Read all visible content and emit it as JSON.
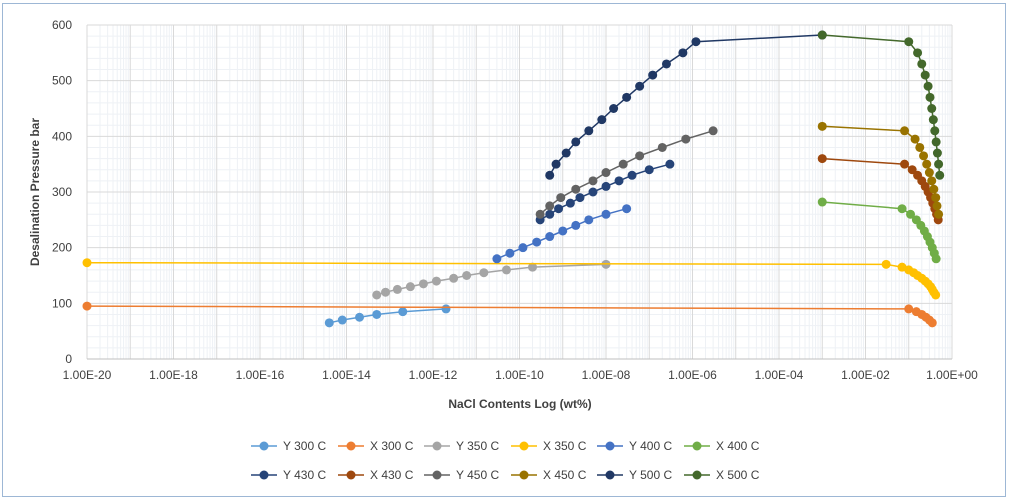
{
  "chart_data": {
    "type": "scatter",
    "title": "",
    "xlabel": "NaCl Contents Log (wt%)",
    "ylabel": "Desalination Pressure bar",
    "x_scale": "log",
    "xlim": [
      1e-20,
      1
    ],
    "ylim": [
      0,
      600
    ],
    "grid": true,
    "legend_position": "bottom",
    "x_tick_labels": [
      "1.00E-20",
      "1.00E-18",
      "1.00E-16",
      "1.00E-14",
      "1.00E-12",
      "1.00E-10",
      "1.00E-08",
      "1.00E-06",
      "1.00E-04",
      "1.00E-02",
      "1.00E+00"
    ],
    "y_tick_labels": [
      "0",
      "100",
      "200",
      "300",
      "400",
      "500",
      "600"
    ],
    "series": [
      {
        "name": "Y 300 C",
        "color": "#5b9bd5",
        "points": [
          [
            4e-15,
            65
          ],
          [
            8e-15,
            70
          ],
          [
            2e-14,
            75
          ],
          [
            5e-14,
            80
          ],
          [
            2e-13,
            85
          ],
          [
            2e-12,
            90
          ]
        ]
      },
      {
        "name": "X 300 C",
        "color": "#ed7d31",
        "points": [
          [
            1e-20,
            95
          ],
          [
            0.1,
            90
          ],
          [
            0.15,
            85
          ],
          [
            0.2,
            80
          ],
          [
            0.25,
            75
          ],
          [
            0.3,
            70
          ],
          [
            0.35,
            65
          ]
        ]
      },
      {
        "name": "Y 350 C",
        "color": "#a5a5a5",
        "points": [
          [
            5e-14,
            115
          ],
          [
            8e-14,
            120
          ],
          [
            1.5e-13,
            125
          ],
          [
            3e-13,
            130
          ],
          [
            6e-13,
            135
          ],
          [
            1.2e-12,
            140
          ],
          [
            3e-12,
            145
          ],
          [
            6e-12,
            150
          ],
          [
            1.5e-11,
            155
          ],
          [
            5e-11,
            160
          ],
          [
            2e-10,
            165
          ],
          [
            1e-08,
            170
          ]
        ]
      },
      {
        "name": "X 350 C",
        "color": "#ffc000",
        "points": [
          [
            1e-20,
            173
          ],
          [
            0.03,
            170
          ],
          [
            0.07,
            165
          ],
          [
            0.1,
            160
          ],
          [
            0.13,
            155
          ],
          [
            0.16,
            150
          ],
          [
            0.2,
            145
          ],
          [
            0.24,
            140
          ],
          [
            0.28,
            135
          ],
          [
            0.32,
            130
          ],
          [
            0.35,
            125
          ],
          [
            0.38,
            120
          ],
          [
            0.42,
            115
          ]
        ]
      },
      {
        "name": "Y 400 C",
        "color": "#4472c4",
        "points": [
          [
            3e-11,
            180
          ],
          [
            6e-11,
            190
          ],
          [
            1.2e-10,
            200
          ],
          [
            2.5e-10,
            210
          ],
          [
            5e-10,
            220
          ],
          [
            1e-09,
            230
          ],
          [
            2e-09,
            240
          ],
          [
            4e-09,
            250
          ],
          [
            1e-08,
            260
          ],
          [
            3e-08,
            270
          ]
        ]
      },
      {
        "name": "X 400 C",
        "color": "#70ad47",
        "points": [
          [
            0.001,
            282
          ],
          [
            0.07,
            270
          ],
          [
            0.11,
            260
          ],
          [
            0.15,
            250
          ],
          [
            0.19,
            240
          ],
          [
            0.23,
            230
          ],
          [
            0.27,
            220
          ],
          [
            0.31,
            210
          ],
          [
            0.35,
            200
          ],
          [
            0.39,
            190
          ],
          [
            0.43,
            180
          ]
        ]
      },
      {
        "name": "Y 430 C",
        "color": "#264478",
        "points": [
          [
            3e-10,
            250
          ],
          [
            5e-10,
            260
          ],
          [
            8e-10,
            270
          ],
          [
            1.5e-09,
            280
          ],
          [
            2.5e-09,
            290
          ],
          [
            5e-09,
            300
          ],
          [
            1e-08,
            310
          ],
          [
            2e-08,
            320
          ],
          [
            4e-08,
            330
          ],
          [
            1e-07,
            340
          ],
          [
            3e-07,
            350
          ]
        ]
      },
      {
        "name": "X 430 C",
        "color": "#9e480e",
        "points": [
          [
            0.001,
            360
          ],
          [
            0.08,
            350
          ],
          [
            0.12,
            340
          ],
          [
            0.16,
            330
          ],
          [
            0.2,
            320
          ],
          [
            0.24,
            310
          ],
          [
            0.28,
            300
          ],
          [
            0.32,
            290
          ],
          [
            0.36,
            280
          ],
          [
            0.4,
            270
          ],
          [
            0.44,
            260
          ],
          [
            0.48,
            250
          ]
        ]
      },
      {
        "name": "Y 450 C",
        "color": "#636363",
        "points": [
          [
            3e-10,
            260
          ],
          [
            5e-10,
            275
          ],
          [
            9e-10,
            290
          ],
          [
            2e-09,
            305
          ],
          [
            5e-09,
            320
          ],
          [
            1e-08,
            335
          ],
          [
            2.5e-08,
            350
          ],
          [
            6e-08,
            365
          ],
          [
            2e-07,
            380
          ],
          [
            7e-07,
            395
          ],
          [
            3e-06,
            410
          ]
        ]
      },
      {
        "name": "X 450 C",
        "color": "#997300",
        "points": [
          [
            0.001,
            418
          ],
          [
            0.08,
            410
          ],
          [
            0.14,
            395
          ],
          [
            0.18,
            380
          ],
          [
            0.22,
            365
          ],
          [
            0.26,
            350
          ],
          [
            0.3,
            335
          ],
          [
            0.34,
            320
          ],
          [
            0.38,
            305
          ],
          [
            0.42,
            290
          ],
          [
            0.45,
            275
          ],
          [
            0.49,
            260
          ]
        ]
      },
      {
        "name": "Y 500 C",
        "color": "#203864",
        "points": [
          [
            5e-10,
            330
          ],
          [
            7e-10,
            350
          ],
          [
            1.2e-09,
            370
          ],
          [
            2e-09,
            390
          ],
          [
            4e-09,
            410
          ],
          [
            8e-09,
            430
          ],
          [
            1.5e-08,
            450
          ],
          [
            3e-08,
            470
          ],
          [
            6e-08,
            490
          ],
          [
            1.2e-07,
            510
          ],
          [
            2.5e-07,
            530
          ],
          [
            6e-07,
            550
          ],
          [
            1.2e-06,
            570
          ],
          [
            0.001,
            582
          ]
        ]
      },
      {
        "name": "X 500 C",
        "color": "#43682b",
        "points": [
          [
            0.001,
            582
          ],
          [
            0.1,
            570
          ],
          [
            0.16,
            550
          ],
          [
            0.2,
            530
          ],
          [
            0.24,
            510
          ],
          [
            0.28,
            490
          ],
          [
            0.31,
            470
          ],
          [
            0.34,
            450
          ],
          [
            0.37,
            430
          ],
          [
            0.4,
            410
          ],
          [
            0.43,
            390
          ],
          [
            0.46,
            370
          ],
          [
            0.49,
            350
          ],
          [
            0.52,
            330
          ]
        ]
      }
    ]
  }
}
